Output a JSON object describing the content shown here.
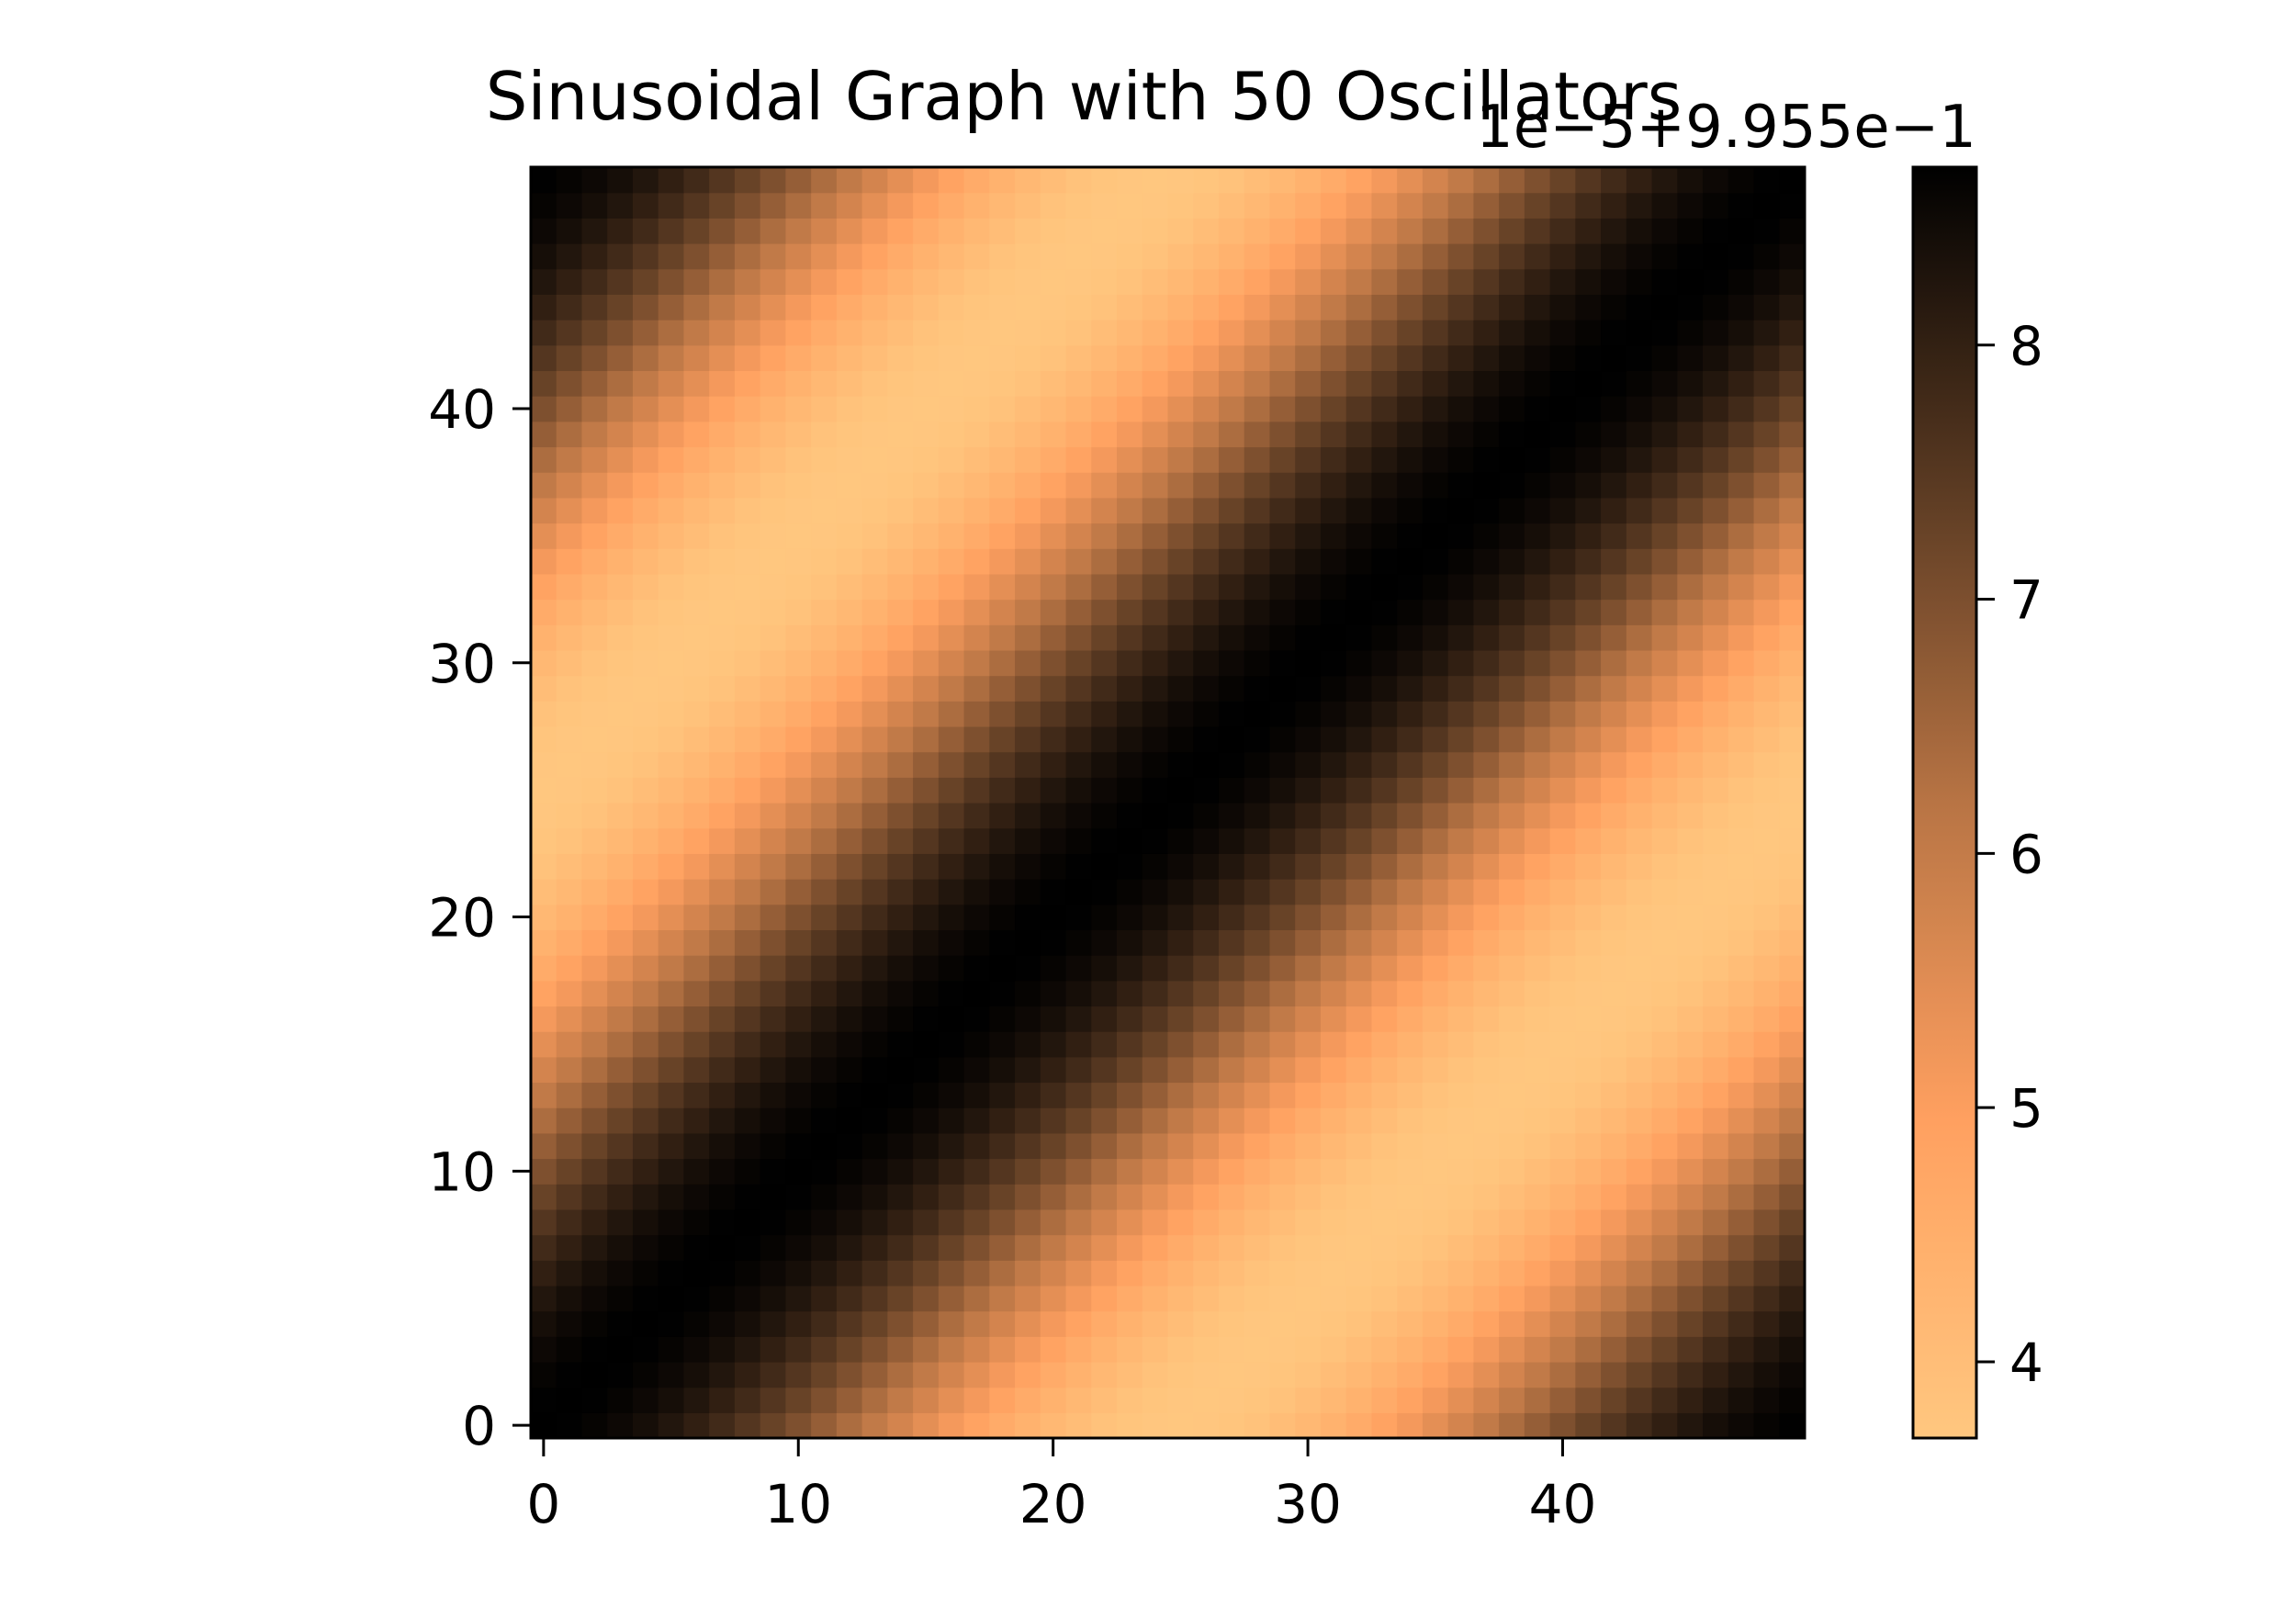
{
  "chart_data": {
    "type": "heatmap",
    "title": "Sinusoidal Graph with 50 Oscillators",
    "xlabel": "",
    "ylabel": "",
    "grid_size": 50,
    "x_range": [
      -0.5,
      49.5
    ],
    "y_range": [
      -0.5,
      49.5
    ],
    "x_ticks": [
      0,
      10,
      20,
      30,
      40
    ],
    "y_ticks": [
      0,
      10,
      20,
      30,
      40
    ],
    "x_tick_labels": [
      "0",
      "10",
      "20",
      "30",
      "40"
    ],
    "y_tick_labels": [
      "0",
      "10",
      "20",
      "30",
      "40"
    ],
    "origin": "lower",
    "grid": false,
    "legend": "none",
    "colormap": "copper_r",
    "colormap_stops": [
      "#ffc77f",
      "#ffa060",
      "#b87444",
      "#5a3a22",
      "#000000"
    ],
    "colorbar": {
      "placement": "right",
      "offset_text": "1e−5+9.955e−1",
      "offset": 0.9955,
      "scale": 1e-05,
      "range": [
        3.7,
        8.7
      ],
      "ticks": [
        4,
        5,
        6,
        7,
        8
      ],
      "tick_labels": [
        "4",
        "5",
        "6",
        "7",
        "8"
      ]
    },
    "field": {
      "formula": "offset + scale * (6.2 + 2.5 * cos(2π (x − y) / 50))",
      "period_along_diagonal_difference": 50,
      "max_on_diagonal": true,
      "min_value": 3.7,
      "max_value": 8.7
    }
  }
}
